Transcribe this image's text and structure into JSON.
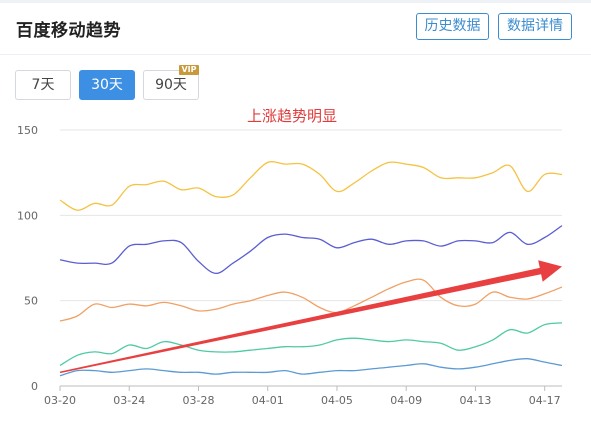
{
  "header": {
    "title": "百度移动趋势",
    "history_label": "历史数据",
    "detail_label": "数据详情"
  },
  "range": {
    "buttons": [
      {
        "label": "7天",
        "selected": false
      },
      {
        "label": "30天",
        "selected": true
      },
      {
        "label": "90天",
        "selected": false
      }
    ],
    "vip_badge": "VIP"
  },
  "annotation": "上涨趋势明显",
  "colors": {
    "accent": "#3d8fe3",
    "arrow": "#e84040",
    "annotation": "#e03c3c"
  },
  "chart_data": {
    "type": "line",
    "x": [
      "03-20",
      "03-21",
      "03-22",
      "03-23",
      "03-24",
      "03-25",
      "03-26",
      "03-27",
      "03-28",
      "03-29",
      "03-30",
      "03-31",
      "04-01",
      "04-02",
      "04-03",
      "04-04",
      "04-05",
      "04-06",
      "04-07",
      "04-08",
      "04-09",
      "04-10",
      "04-11",
      "04-12",
      "04-13",
      "04-14",
      "04-15",
      "04-16",
      "04-17",
      "04-18"
    ],
    "x_tick_labels": [
      "03-20",
      "03-24",
      "03-28",
      "04-01",
      "04-05",
      "04-09",
      "04-13",
      "04-17"
    ],
    "y_ticks": [
      0,
      50,
      100,
      150
    ],
    "ylim": [
      0,
      150
    ],
    "grid": true,
    "series": [
      {
        "color": "#f5c342",
        "values": [
          109,
          103,
          107,
          106,
          117,
          118,
          120,
          115,
          116,
          111,
          112,
          122,
          131,
          130,
          130,
          124,
          114,
          119,
          126,
          131,
          130,
          128,
          122,
          122,
          122,
          125,
          129,
          114,
          124,
          124
        ]
      },
      {
        "color": "#5a5ed1",
        "values": [
          74,
          72,
          72,
          72,
          82,
          83,
          85,
          84,
          73,
          66,
          72,
          79,
          87,
          89,
          87,
          86,
          81,
          84,
          86,
          83,
          85,
          85,
          82,
          85,
          85,
          84,
          90,
          83,
          87,
          94
        ]
      },
      {
        "color": "#f0a064",
        "values": [
          38,
          41,
          48,
          46,
          48,
          47,
          49,
          47,
          44,
          45,
          48,
          50,
          53,
          55,
          52,
          46,
          43,
          47,
          52,
          57,
          61,
          62,
          52,
          47,
          48,
          55,
          52,
          51,
          54,
          58
        ]
      },
      {
        "color": "#4fcaa4",
        "values": [
          12,
          18,
          20,
          19,
          24,
          22,
          26,
          24,
          21,
          20,
          20,
          21,
          22,
          23,
          23,
          24,
          27,
          28,
          27,
          26,
          27,
          26,
          25,
          21,
          23,
          27,
          33,
          31,
          36,
          37
        ]
      },
      {
        "color": "#5b9bd5",
        "values": [
          6,
          9,
          9,
          8,
          9,
          10,
          9,
          8,
          8,
          7,
          8,
          8,
          8,
          9,
          7,
          8,
          9,
          9,
          10,
          11,
          12,
          13,
          11,
          10,
          11,
          13,
          15,
          16,
          14,
          12
        ]
      }
    ],
    "trend_arrow": {
      "from": {
        "x": "03-20",
        "y": 8
      },
      "to": {
        "x": "04-18",
        "y": 70
      }
    }
  }
}
